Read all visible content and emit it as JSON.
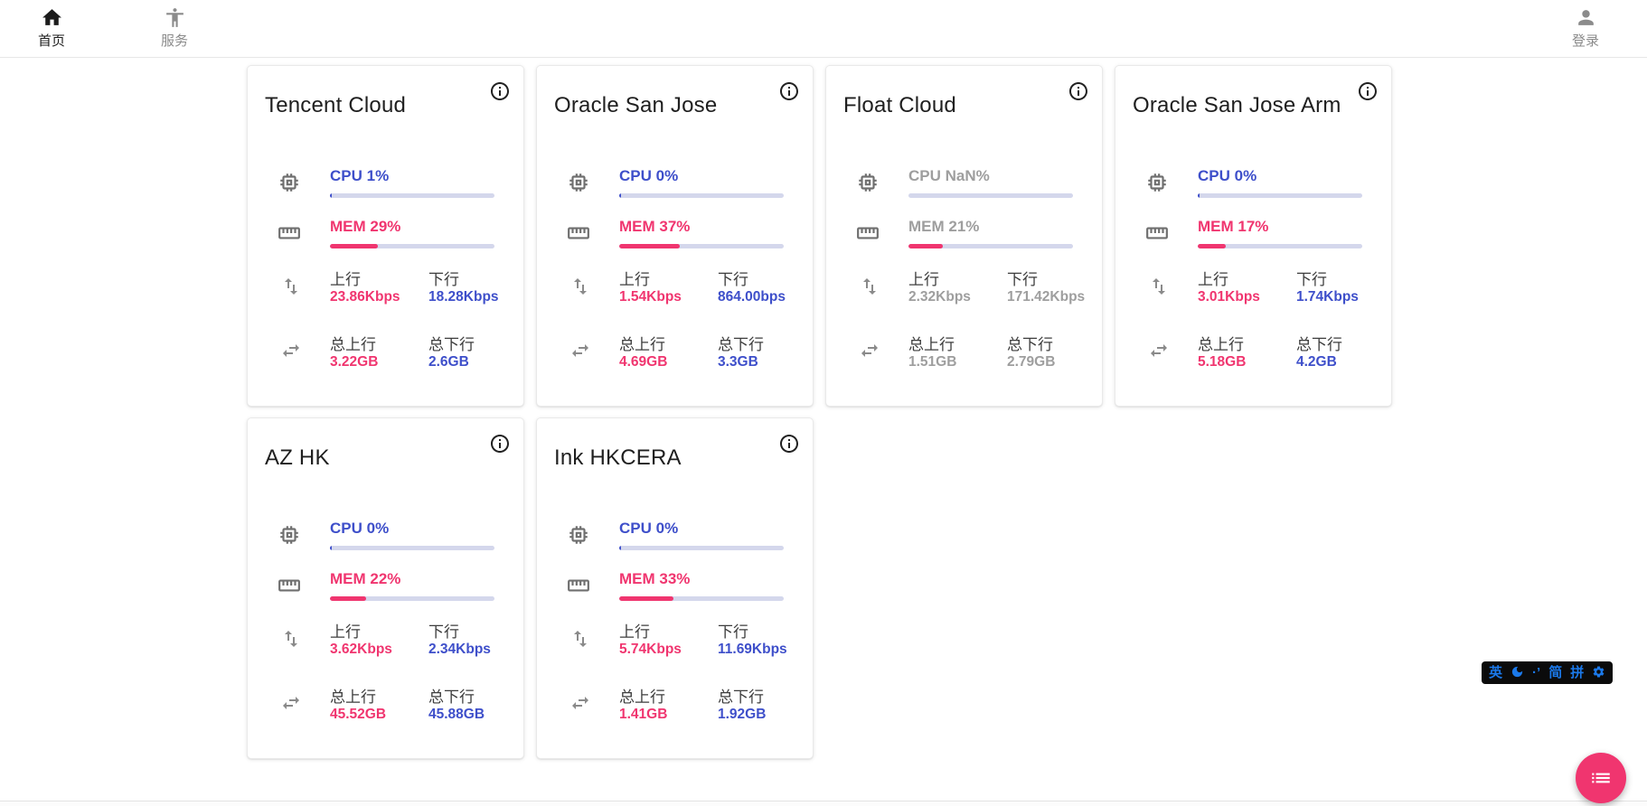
{
  "nav": {
    "left_items": [
      {
        "label": "首页",
        "icon": "home-icon",
        "active": true
      },
      {
        "label": "服务",
        "icon": "accessibility-icon",
        "active": false
      }
    ],
    "right_items": [
      {
        "label": "登录",
        "icon": "person-icon",
        "active": false
      }
    ]
  },
  "labels": {
    "up": "上行",
    "down": "下行",
    "total_up": "总上行",
    "total_down": "总下行"
  },
  "servers": [
    {
      "name": "Tencent Cloud",
      "online": true,
      "cpu": {
        "text": "CPU 1%",
        "percent": 1
      },
      "mem": {
        "text": "MEM 29%",
        "percent": 29
      },
      "net": {
        "up": "23.86Kbps",
        "down": "18.28Kbps"
      },
      "total": {
        "up": "3.22GB",
        "down": "2.6GB"
      }
    },
    {
      "name": "Oracle San Jose",
      "online": true,
      "cpu": {
        "text": "CPU 0%",
        "percent": 0
      },
      "mem": {
        "text": "MEM 37%",
        "percent": 37
      },
      "net": {
        "up": "1.54Kbps",
        "down": "864.00bps"
      },
      "total": {
        "up": "4.69GB",
        "down": "3.3GB"
      }
    },
    {
      "name": "Float Cloud",
      "online": false,
      "cpu": {
        "text": "CPU NaN%",
        "percent": 0
      },
      "mem": {
        "text": "MEM 21%",
        "percent": 21
      },
      "net": {
        "up": "2.32Kbps",
        "down": "171.42Kbps"
      },
      "total": {
        "up": "1.51GB",
        "down": "2.79GB"
      }
    },
    {
      "name": "Oracle San Jose Arm",
      "online": true,
      "cpu": {
        "text": "CPU 0%",
        "percent": 0
      },
      "mem": {
        "text": "MEM 17%",
        "percent": 17
      },
      "net": {
        "up": "3.01Kbps",
        "down": "1.74Kbps"
      },
      "total": {
        "up": "5.18GB",
        "down": "4.2GB"
      }
    },
    {
      "name": "AZ HK",
      "online": true,
      "cpu": {
        "text": "CPU 0%",
        "percent": 0
      },
      "mem": {
        "text": "MEM 22%",
        "percent": 22
      },
      "net": {
        "up": "3.62Kbps",
        "down": "2.34Kbps"
      },
      "total": {
        "up": "45.52GB",
        "down": "45.88GB"
      }
    },
    {
      "name": "Ink HKCERA",
      "online": true,
      "cpu": {
        "text": "CPU 0%",
        "percent": 0
      },
      "mem": {
        "text": "MEM 33%",
        "percent": 33
      },
      "net": {
        "up": "5.74Kbps",
        "down": "11.69Kbps"
      },
      "total": {
        "up": "1.41GB",
        "down": "1.92GB"
      }
    }
  ],
  "ime": {
    "lang": "英",
    "moon_icon": "moon-icon",
    "punct": "·’",
    "simplified": "简",
    "pinyin": "拼",
    "gear_icon": "gear-icon"
  },
  "colors": {
    "blue": "#3e4fca",
    "pink": "#f0356f",
    "bar_track": "#d4d7ec",
    "offline_gray": "#9e9e9e",
    "ime_blue": "#1b79ea"
  }
}
